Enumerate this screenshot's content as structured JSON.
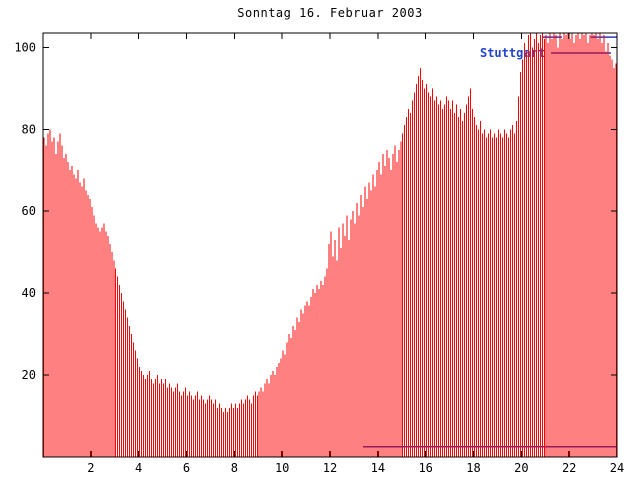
{
  "chart_data": {
    "type": "bar",
    "title": "Sonntag 16. Februar 2003",
    "xlabel": "",
    "ylabel": "",
    "xlim": [
      0,
      24
    ],
    "ylim": [
      0,
      103.5
    ],
    "xticks": [
      2,
      4,
      6,
      8,
      10,
      12,
      14,
      16,
      18,
      20,
      22,
      24
    ],
    "yticks": [
      20,
      40,
      60,
      80,
      100
    ],
    "x_interval_hours": 0.083333,
    "bar_color": "#ff0000",
    "grid": false,
    "legend_position": "top-right",
    "values": [
      78,
      76,
      79,
      80,
      77,
      78,
      74,
      77,
      79,
      76,
      73,
      74,
      72,
      70,
      71,
      69,
      68,
      70,
      67,
      66,
      68,
      65,
      64,
      63,
      61,
      59,
      57,
      56,
      55,
      56,
      57,
      55,
      54,
      52,
      50,
      48,
      46,
      44,
      42,
      40,
      38,
      36,
      34,
      32,
      30,
      28,
      26,
      24,
      22,
      21,
      20,
      19,
      20,
      21,
      19,
      18,
      19,
      20,
      18,
      19,
      18,
      19,
      17,
      18,
      17,
      16,
      17,
      18,
      16,
      15,
      16,
      17,
      15,
      16,
      15,
      14,
      15,
      16,
      14,
      15,
      14,
      13,
      14,
      15,
      14,
      13,
      14,
      12,
      13,
      12,
      11,
      12,
      11,
      12,
      13,
      12,
      13,
      12,
      13,
      14,
      13,
      14,
      15,
      14,
      13,
      15,
      16,
      15,
      16,
      17,
      16,
      18,
      19,
      18,
      20,
      21,
      20,
      22,
      23,
      24,
      26,
      25,
      28,
      30,
      29,
      32,
      31,
      34,
      33,
      36,
      35,
      37,
      38,
      37,
      39,
      41,
      40,
      42,
      41,
      43,
      42,
      44,
      46,
      52,
      55,
      49,
      53,
      48,
      56,
      51,
      57,
      54,
      59,
      53,
      58,
      60,
      57,
      62,
      59,
      64,
      61,
      66,
      63,
      67,
      65,
      69,
      66,
      70,
      72,
      69,
      74,
      71,
      75,
      73,
      70,
      74,
      76,
      72,
      75,
      77,
      79,
      81,
      83,
      85,
      84,
      87,
      89,
      91,
      93,
      95,
      92,
      90,
      91,
      89,
      88,
      90,
      87,
      88,
      86,
      87,
      85,
      86,
      88,
      87,
      85,
      87,
      84,
      86,
      83,
      85,
      82,
      84,
      86,
      88,
      90,
      85,
      83,
      81,
      80,
      82,
      79,
      80,
      78,
      79,
      80,
      78,
      79,
      78,
      80,
      79,
      78,
      80,
      79,
      78,
      80,
      81,
      79,
      82,
      88,
      94,
      97,
      101,
      99,
      103,
      104,
      100,
      102,
      105,
      101,
      103,
      104,
      102,
      103,
      101,
      104,
      102,
      105,
      103,
      100,
      104,
      102,
      105,
      103,
      104,
      102,
      104,
      101,
      103,
      105,
      102,
      104,
      103,
      105,
      101,
      103,
      104,
      103,
      105,
      102,
      104,
      101,
      103,
      99,
      101,
      98,
      97,
      95,
      96
    ],
    "overlay_line": {
      "name": "Stuttgart",
      "color": "#2838b8",
      "segments": [
        {
          "x1": 13.4,
          "x2": 24.0,
          "y": 2.5
        },
        {
          "x1": 20.9,
          "x2": 21.7,
          "y": 102.5
        },
        {
          "x1": 22.9,
          "x2": 24.0,
          "y": 102.5
        }
      ]
    }
  }
}
